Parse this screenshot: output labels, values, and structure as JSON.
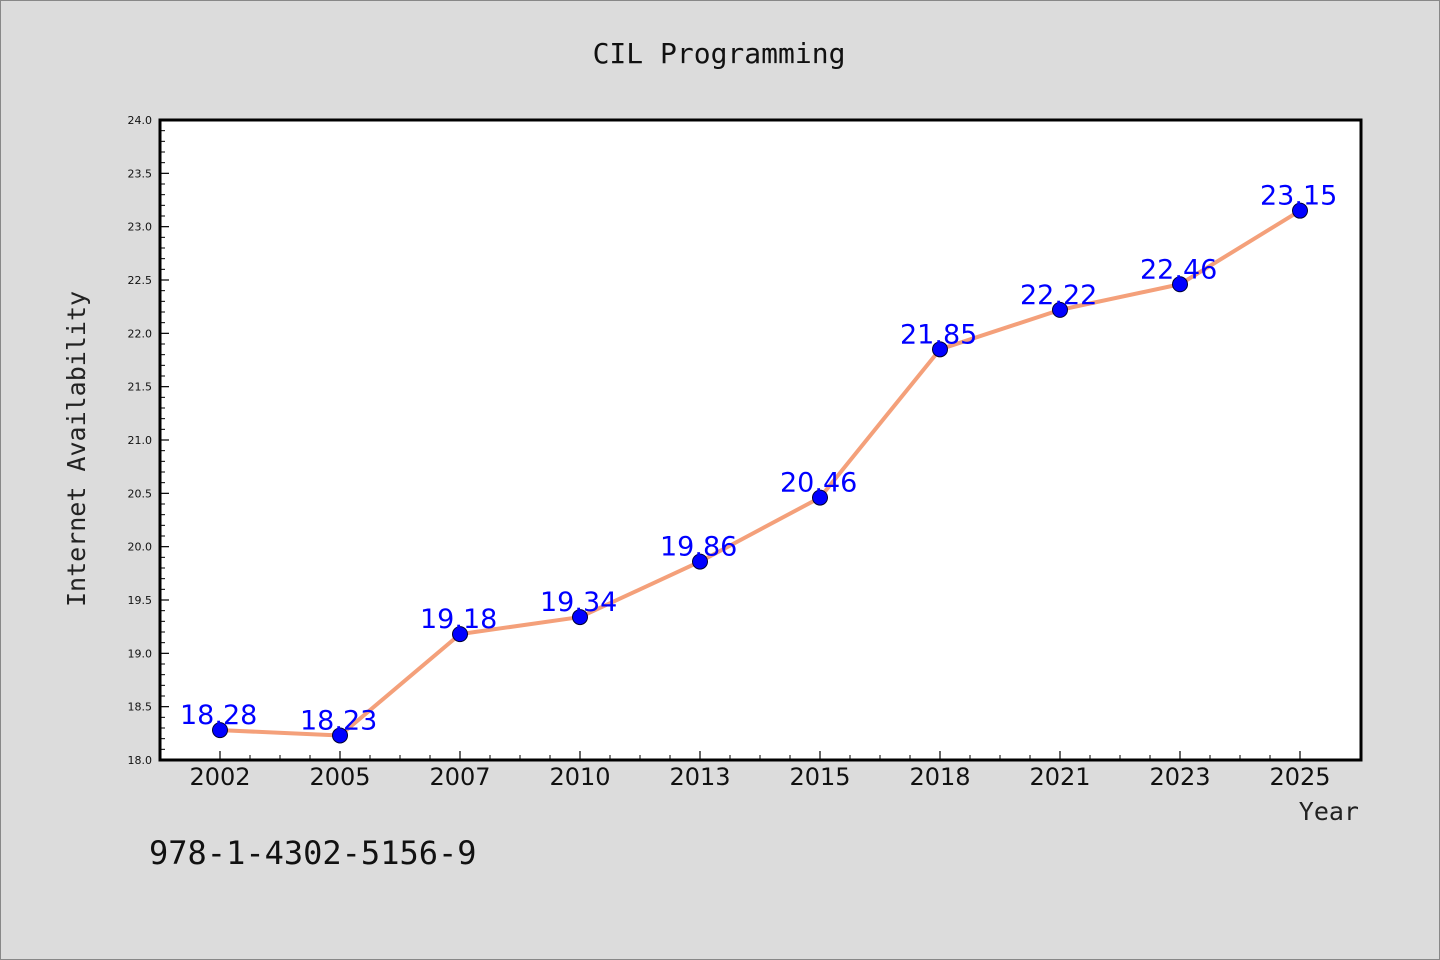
{
  "chart_data": {
    "type": "line",
    "title": "CIL Programming",
    "xlabel": "Year",
    "ylabel": "Internet Availability",
    "categories": [
      "2002",
      "2005",
      "2007",
      "2010",
      "2013",
      "2015",
      "2018",
      "2021",
      "2023",
      "2025"
    ],
    "series": [
      {
        "values": [
          18.28,
          18.23,
          19.18,
          19.34,
          19.86,
          20.46,
          21.85,
          22.22,
          22.46,
          23.15
        ],
        "line_color": "#f4a07a",
        "marker_color": "#0000ff"
      }
    ],
    "data_labels": [
      "18.28",
      "18.23",
      "19.18",
      "19.34",
      "19.86",
      "20.46",
      "21.85",
      "22.22",
      "22.46",
      "23.15"
    ],
    "ylim": [
      18.0,
      24.0
    ],
    "yticks": [
      "18.0",
      "18.5",
      "19.0",
      "19.5",
      "20.0",
      "20.5",
      "21.0",
      "21.5",
      "22.0",
      "22.5",
      "23.0",
      "23.5",
      "24.0"
    ],
    "grid": false,
    "legend": "none"
  },
  "footer": {
    "isbn": "978-1-4302-5156-9"
  },
  "colors": {
    "background": "#dcdcdc",
    "plot_background": "#ffffff",
    "line": "#f4a07a",
    "marker": "#0000ff",
    "data_label": "#0000ff"
  }
}
